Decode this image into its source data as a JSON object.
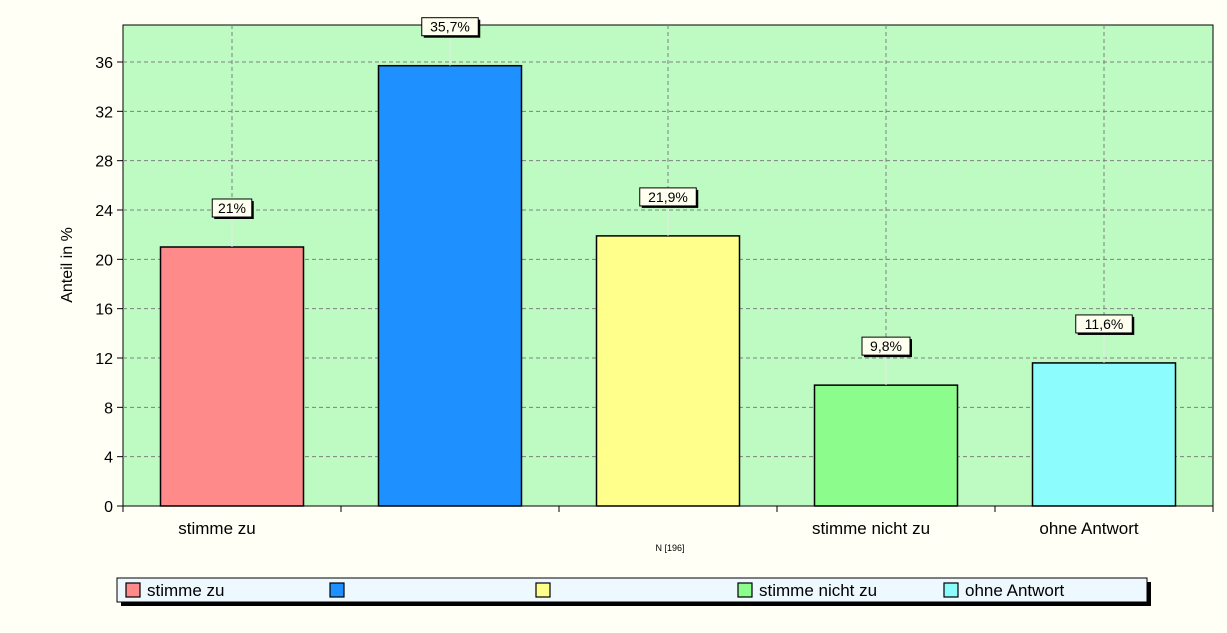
{
  "colors": {
    "page_background": "#fffff5",
    "plot_background": "#bdfbc2",
    "legend_background": "#eef8ff",
    "grid": "#808080"
  },
  "chart_data": {
    "type": "bar",
    "categories": [
      "stimme zu",
      "",
      "",
      "stimme nicht zu",
      "ohne Antwort"
    ],
    "values": [
      21,
      35.7,
      21.9,
      9.8,
      11.6
    ],
    "data_labels": [
      "21%",
      "35,7%",
      "21,9%",
      "9,8%",
      "11,6%"
    ],
    "bar_colors": [
      "#ff8a8a",
      "#1e90ff",
      "#ffff8c",
      "#8cfc8c",
      "#8cfcfc"
    ],
    "ylabel": "Anteil in %",
    "xlabel": "",
    "note": "N [196]",
    "ylim": [
      0,
      39
    ],
    "yticks": [
      0,
      4,
      8,
      12,
      16,
      20,
      24,
      28,
      32,
      36
    ],
    "grid": true,
    "legend_position": "bottom",
    "legend": [
      {
        "label": "stimme zu",
        "color": "#ff8a8a"
      },
      {
        "label": "",
        "color": "#1e90ff"
      },
      {
        "label": "",
        "color": "#ffff8c"
      },
      {
        "label": "stimme nicht zu",
        "color": "#8cfc8c"
      },
      {
        "label": "ohne Antwort",
        "color": "#8cfcfc"
      }
    ]
  }
}
